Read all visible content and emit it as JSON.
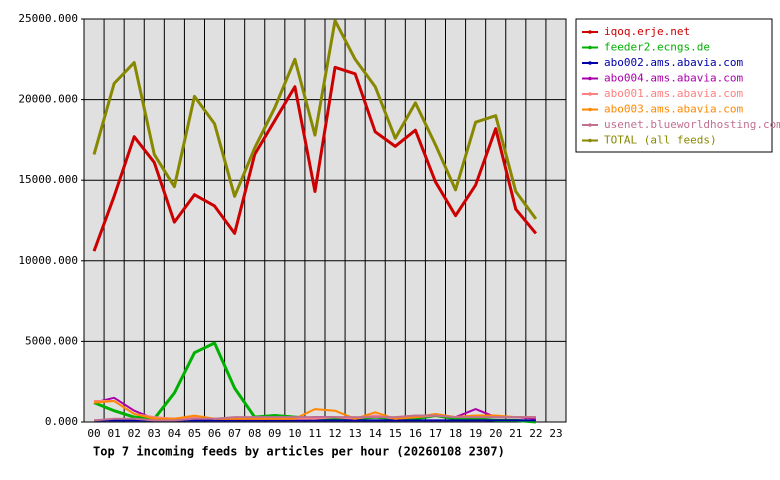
{
  "chart_data": {
    "type": "line",
    "title": "Top 7 incoming feeds by articles per hour (20260108 2307)",
    "categories": [
      "00",
      "01",
      "02",
      "03",
      "04",
      "05",
      "06",
      "07",
      "08",
      "09",
      "10",
      "11",
      "12",
      "13",
      "14",
      "15",
      "16",
      "17",
      "18",
      "19",
      "20",
      "21",
      "22",
      "23"
    ],
    "series": [
      {
        "name": "iqoq.erje.net",
        "color": "#cc0000",
        "width": 3,
        "values": [
          10600,
          14000,
          17700,
          16100,
          12400,
          14100,
          13400,
          11700,
          16600,
          18700,
          20800,
          14300,
          22000,
          21600,
          18000,
          17100,
          18100,
          14900,
          12800,
          14700,
          18200,
          13200,
          11700,
          null
        ]
      },
      {
        "name": "feeder2.ecngs.de",
        "color": "#00b000",
        "width": 3,
        "values": [
          1200,
          700,
          300,
          200,
          1800,
          4300,
          4900,
          2100,
          300,
          400,
          300,
          200,
          200,
          200,
          300,
          200,
          200,
          400,
          200,
          200,
          100,
          100,
          0,
          null
        ]
      },
      {
        "name": "abo002.ams.abavia.com",
        "color": "#0000aa",
        "width": 2,
        "values": [
          100,
          100,
          100,
          100,
          100,
          100,
          100,
          100,
          100,
          100,
          100,
          100,
          100,
          100,
          100,
          100,
          100,
          100,
          100,
          100,
          100,
          100,
          100,
          null
        ]
      },
      {
        "name": "abo004.ams.abavia.com",
        "color": "#aa00aa",
        "width": 2,
        "values": [
          1200,
          1500,
          700,
          200,
          200,
          300,
          200,
          200,
          200,
          200,
          200,
          300,
          300,
          200,
          400,
          200,
          300,
          400,
          300,
          800,
          300,
          300,
          200,
          null
        ]
      },
      {
        "name": "abo001.ams.abavia.com",
        "color": "#ff8080",
        "width": 2,
        "values": [
          1300,
          1300,
          500,
          300,
          200,
          300,
          200,
          200,
          200,
          200,
          200,
          200,
          300,
          200,
          400,
          200,
          300,
          400,
          300,
          400,
          300,
          300,
          300,
          null
        ]
      },
      {
        "name": "abo003.ams.abavia.com",
        "color": "#ff8800",
        "width": 2,
        "values": [
          1200,
          1300,
          500,
          200,
          200,
          400,
          200,
          200,
          200,
          200,
          200,
          800,
          700,
          200,
          600,
          200,
          300,
          500,
          300,
          400,
          400,
          300,
          300,
          null
        ]
      },
      {
        "name": "usenet.blueworldhosting.com",
        "color": "#c07090",
        "width": 2,
        "values": [
          100,
          200,
          200,
          100,
          100,
          200,
          200,
          300,
          300,
          300,
          300,
          300,
          300,
          300,
          300,
          300,
          400,
          400,
          300,
          300,
          300,
          300,
          300,
          null
        ]
      },
      {
        "name": "TOTAL (all feeds)",
        "color": "#888800",
        "width": 3,
        "values": [
          16600,
          21000,
          22300,
          16600,
          14600,
          20200,
          18500,
          14000,
          17000,
          19500,
          22500,
          17800,
          24900,
          22500,
          20800,
          17600,
          19800,
          17200,
          14400,
          18600,
          19000,
          14300,
          12600,
          null
        ]
      }
    ],
    "ylim": [
      0,
      25000
    ],
    "yticks": [
      {
        "value": 0,
        "label": "0.000"
      },
      {
        "value": 5000,
        "label": "5000.000"
      },
      {
        "value": 10000,
        "label": "10000.000"
      },
      {
        "value": 15000,
        "label": "15000.000"
      },
      {
        "value": 20000,
        "label": "20000.000"
      },
      {
        "value": 25000,
        "label": "25000.000"
      }
    ],
    "grid": true,
    "plot_background": "#e0e0e0"
  }
}
